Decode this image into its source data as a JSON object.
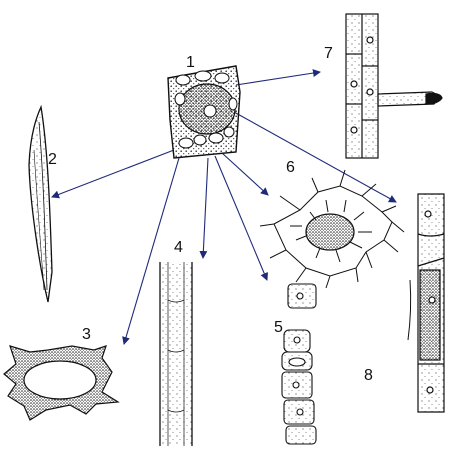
{
  "labels": {
    "l1": "1",
    "l2": "2",
    "l3": "3",
    "l4": "4",
    "l5": "5",
    "l6": "6",
    "l7": "7",
    "l8": "8"
  },
  "colors": {
    "arrow": "#1f2a7a",
    "ink": "#111111",
    "stipple": "#333333"
  }
}
